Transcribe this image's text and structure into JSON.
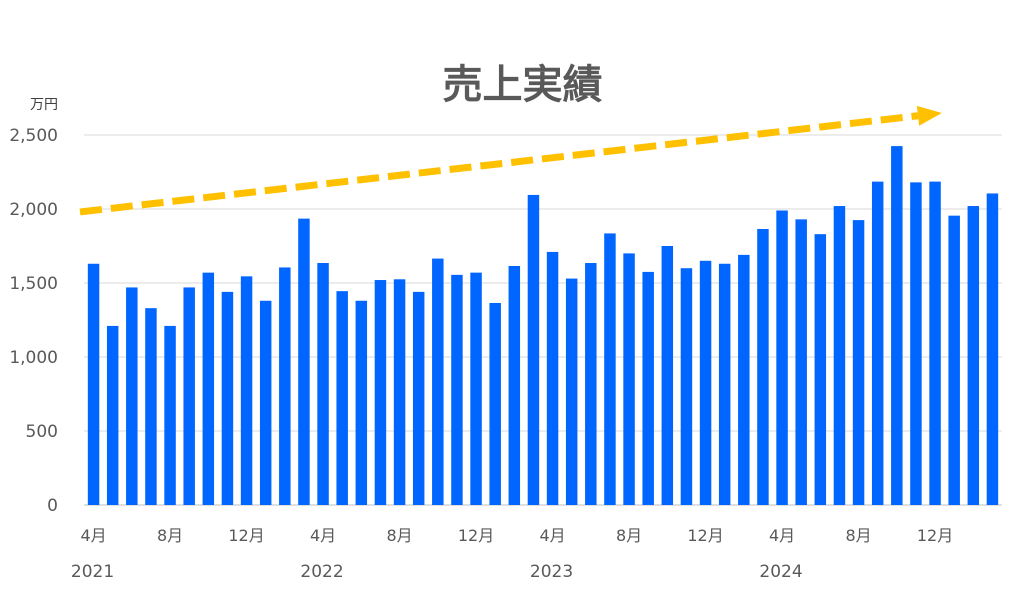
{
  "chart_data": {
    "type": "bar",
    "title": "売上実績",
    "unit_label": "万円",
    "xlabel": "",
    "ylabel": "",
    "ylim": [
      0,
      2500
    ],
    "yticks": [
      0,
      500,
      1000,
      1500,
      2000,
      2500
    ],
    "ytick_labels": [
      "0",
      "500",
      "1,000",
      "1,500",
      "2,000",
      "2,500"
    ],
    "grid": true,
    "bar_color": "#0066ff",
    "trend_arrow_color": "#ffc000",
    "trend_line": {
      "start_value": 1980,
      "end_value": 2630
    },
    "categories": [
      "2021-04",
      "2021-05",
      "2021-06",
      "2021-07",
      "2021-08",
      "2021-09",
      "2021-10",
      "2021-11",
      "2021-12",
      "2022-01",
      "2022-02",
      "2022-03",
      "2022-04",
      "2022-05",
      "2022-06",
      "2022-07",
      "2022-08",
      "2022-09",
      "2022-10",
      "2022-11",
      "2022-12",
      "2023-01",
      "2023-02",
      "2023-03",
      "2023-04",
      "2023-05",
      "2023-06",
      "2023-07",
      "2023-08",
      "2023-09",
      "2023-10",
      "2023-11",
      "2023-12",
      "2024-01",
      "2024-02",
      "2024-03",
      "2024-04",
      "2024-05",
      "2024-06",
      "2024-07",
      "2024-08",
      "2024-09",
      "2024-10",
      "2024-11",
      "2024-12",
      "2025-01",
      "2025-02",
      "2025-03"
    ],
    "values": [
      1630,
      1210,
      1470,
      1330,
      1210,
      1470,
      1570,
      1440,
      1545,
      1380,
      1605,
      1935,
      1635,
      1445,
      1380,
      1520,
      1525,
      1440,
      1665,
      1555,
      1570,
      1365,
      1615,
      2095,
      1710,
      1530,
      1635,
      1835,
      1700,
      1575,
      1750,
      1600,
      1650,
      1630,
      1690,
      1865,
      1990,
      1930,
      1830,
      2020,
      1925,
      2185,
      2425,
      2180,
      2185,
      1955,
      2020,
      2105
    ],
    "month_ticks": [
      {
        "index": 0,
        "label": "4月"
      },
      {
        "index": 4,
        "label": "8月"
      },
      {
        "index": 8,
        "label": "12月"
      },
      {
        "index": 12,
        "label": "4月"
      },
      {
        "index": 16,
        "label": "8月"
      },
      {
        "index": 20,
        "label": "12月"
      },
      {
        "index": 24,
        "label": "4月"
      },
      {
        "index": 28,
        "label": "8月"
      },
      {
        "index": 32,
        "label": "12月"
      },
      {
        "index": 36,
        "label": "4月"
      },
      {
        "index": 40,
        "label": "8月"
      },
      {
        "index": 44,
        "label": "12月"
      }
    ],
    "year_ticks": [
      {
        "index": 0,
        "label": "2021"
      },
      {
        "index": 12,
        "label": "2022"
      },
      {
        "index": 24,
        "label": "2023"
      },
      {
        "index": 36,
        "label": "2024"
      }
    ]
  }
}
